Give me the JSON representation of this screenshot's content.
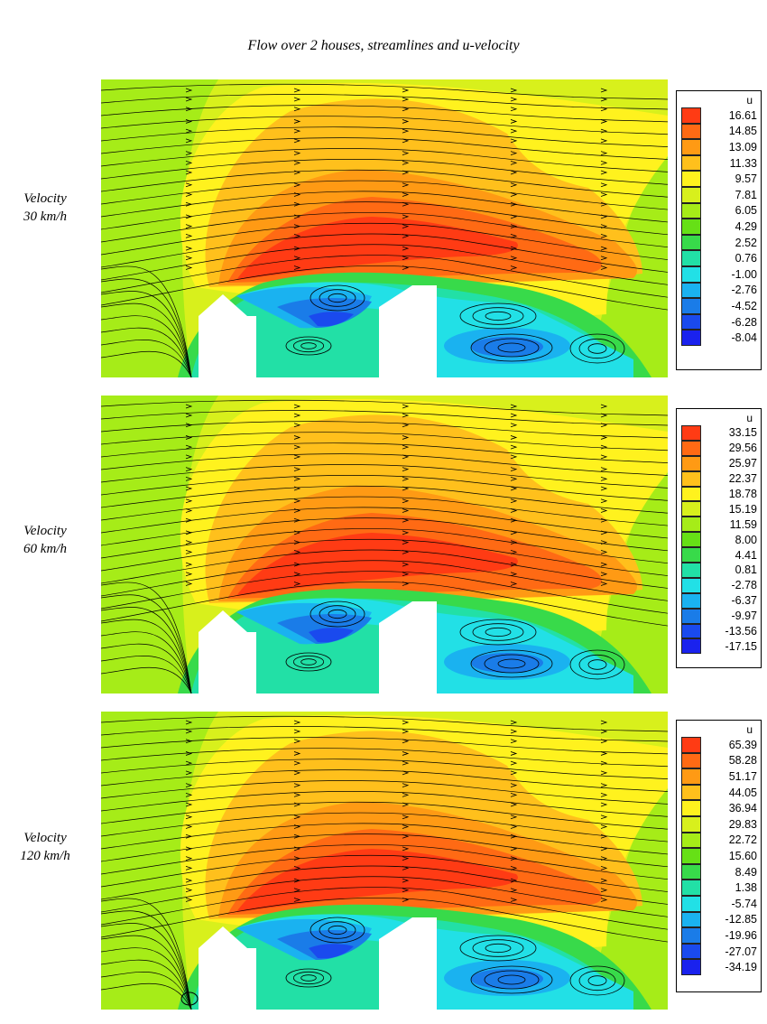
{
  "figure": {
    "title": "Flow over 2 houses, streamlines and u-velocity",
    "panels": [
      {
        "label_line1": "Velocity",
        "label_line2": "30 km/h",
        "legend_title": "u",
        "levels": [
          "16.61",
          "14.85",
          "13.09",
          "11.33",
          "9.57",
          "7.81",
          "6.05",
          "4.29",
          "2.52",
          "0.76",
          "-1.00",
          "-2.76",
          "-4.52",
          "-6.28",
          "-8.04"
        ]
      },
      {
        "label_line1": "Velocity",
        "label_line2": "60 km/h",
        "legend_title": "u",
        "levels": [
          "33.15",
          "29.56",
          "25.97",
          "22.37",
          "18.78",
          "15.19",
          "11.59",
          "8.00",
          "4.41",
          "0.81",
          "-2.78",
          "-6.37",
          "-9.97",
          "-13.56",
          "-17.15"
        ]
      },
      {
        "label_line1": "Velocity",
        "label_line2": "120 km/h",
        "legend_title": "u",
        "levels": [
          "65.39",
          "58.28",
          "51.17",
          "44.05",
          "36.94",
          "29.83",
          "22.72",
          "15.60",
          "8.49",
          "1.38",
          "-5.74",
          "-12.85",
          "-19.96",
          "-27.07",
          "-34.19"
        ]
      }
    ]
  },
  "colors": {
    "level_colors": [
      "#ff3b14",
      "#ff6a14",
      "#ff9a14",
      "#ffc01c",
      "#fff21e",
      "#d8f01c",
      "#a6ec18",
      "#66e016",
      "#38da4a",
      "#22e0a6",
      "#22e0e6",
      "#1ab2f0",
      "#1a7ce8",
      "#1a4aee",
      "#1a22ee"
    ]
  }
}
